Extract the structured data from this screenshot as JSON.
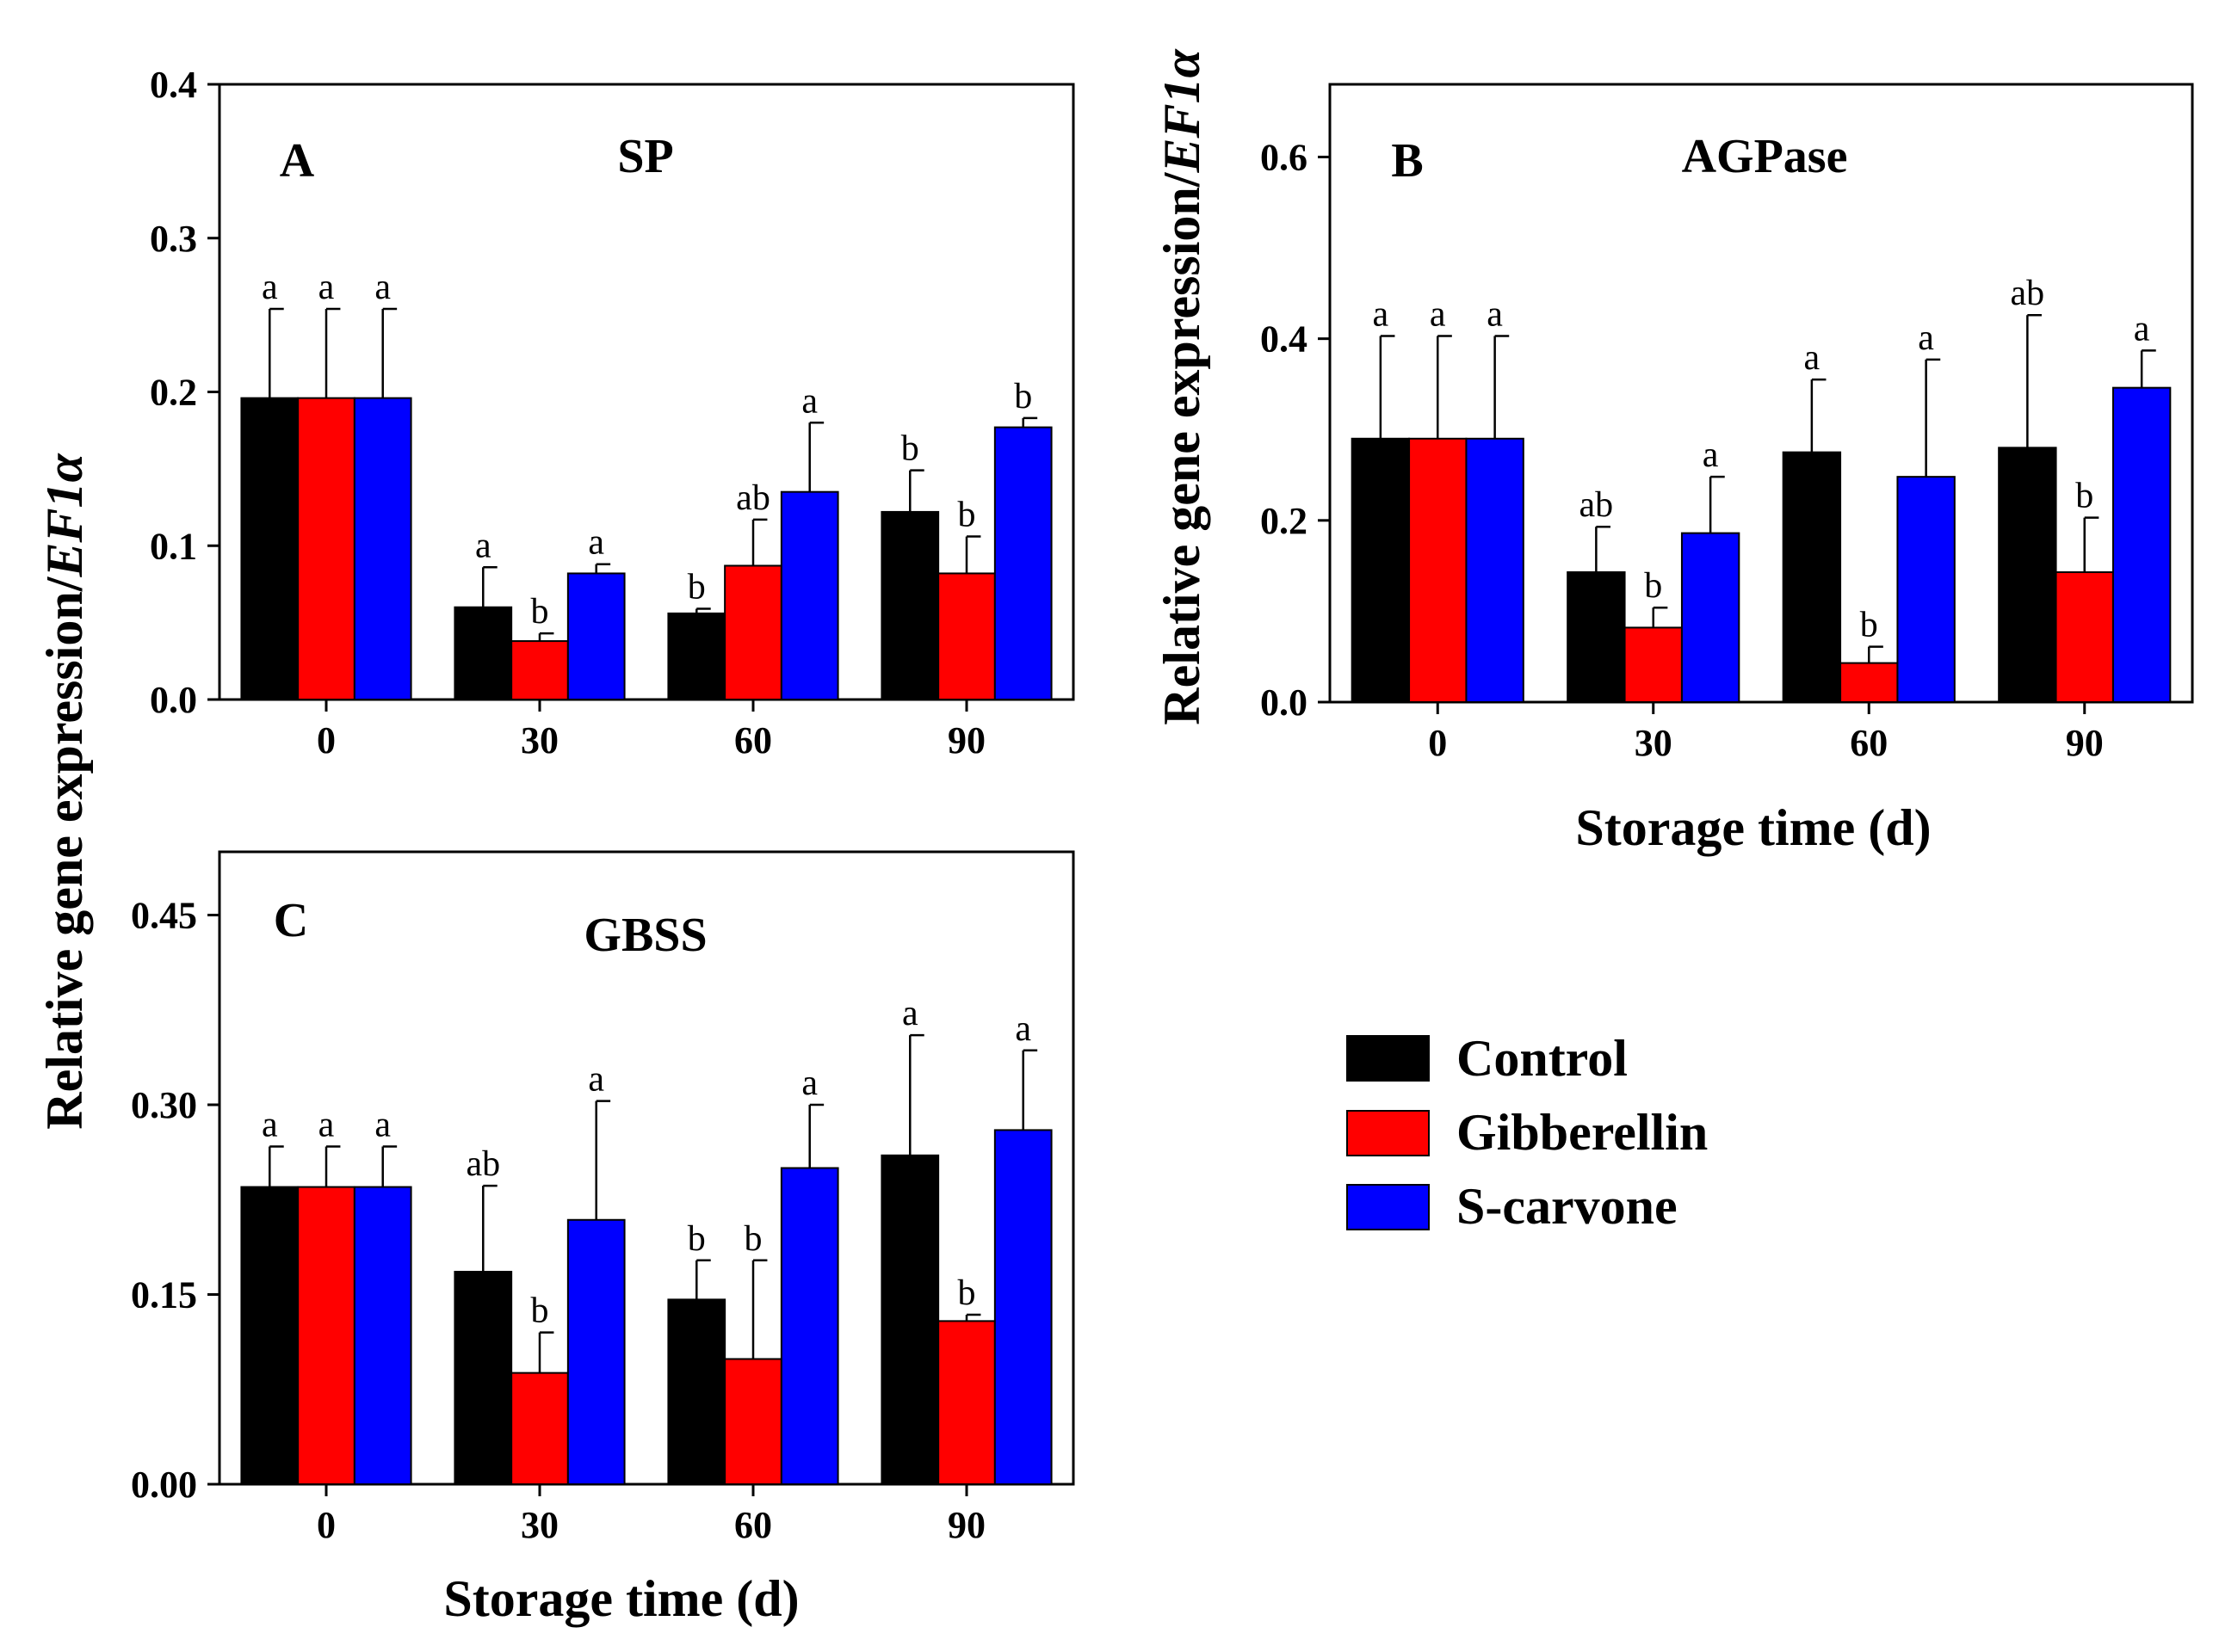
{
  "colors": {
    "control": "#000000",
    "gibberellin": "#ff0000",
    "s_carvone": "#0000ff"
  },
  "axes": {
    "ylabel_prefix": "Relative gene expression/",
    "ylabel_gene": "EF1α",
    "xlabel": "Storage time (d)"
  },
  "legend": [
    "Control",
    "Gibberellin",
    "S-carvone"
  ],
  "chart_data": [
    {
      "type": "bar",
      "panel": "A",
      "title": "SP",
      "categories": [
        "0",
        "30",
        "60",
        "90"
      ],
      "ylim": [
        0,
        0.4
      ],
      "yticks": [
        0.0,
        0.1,
        0.2,
        0.3,
        0.4
      ],
      "ytick_labels": [
        "0.0",
        "0.1",
        "0.2",
        "0.3",
        "0.4"
      ],
      "series": [
        {
          "name": "Control",
          "values": [
            0.196,
            0.06,
            0.056,
            0.122
          ],
          "errors": [
            0.058,
            0.026,
            0.003,
            0.027
          ],
          "labels": [
            "a",
            "a",
            "b",
            "b"
          ]
        },
        {
          "name": "Gibberellin",
          "values": [
            0.196,
            0.038,
            0.087,
            0.082
          ],
          "errors": [
            0.058,
            0.005,
            0.03,
            0.024
          ],
          "labels": [
            "a",
            "b",
            "ab",
            "b"
          ]
        },
        {
          "name": "S-carvone",
          "values": [
            0.196,
            0.082,
            0.135,
            0.177
          ],
          "errors": [
            0.058,
            0.006,
            0.045,
            0.006
          ],
          "labels": [
            "a",
            "a",
            "a",
            "b"
          ]
        }
      ]
    },
    {
      "type": "bar",
      "panel": "B",
      "title": "AGPase",
      "categories": [
        "0",
        "30",
        "60",
        "90"
      ],
      "ylim": [
        0,
        0.68
      ],
      "yticks": [
        0.0,
        0.2,
        0.4,
        0.6
      ],
      "ytick_labels": [
        "0.0",
        "0.2",
        "0.4",
        "0.6"
      ],
      "series": [
        {
          "name": "Control",
          "values": [
            0.29,
            0.143,
            0.275,
            0.28
          ],
          "errors": [
            0.113,
            0.05,
            0.08,
            0.146
          ],
          "labels": [
            "a",
            "ab",
            "a",
            "ab"
          ]
        },
        {
          "name": "Gibberellin",
          "values": [
            0.29,
            0.082,
            0.043,
            0.143
          ],
          "errors": [
            0.113,
            0.022,
            0.018,
            0.06
          ],
          "labels": [
            "a",
            "b",
            "b",
            "b"
          ]
        },
        {
          "name": "S-carvone",
          "values": [
            0.29,
            0.186,
            0.248,
            0.346
          ],
          "errors": [
            0.113,
            0.062,
            0.129,
            0.041
          ],
          "labels": [
            "a",
            "a",
            "a",
            "a"
          ]
        }
      ]
    },
    {
      "type": "bar",
      "panel": "C",
      "title": "GBSS",
      "categories": [
        "0",
        "30",
        "60",
        "90"
      ],
      "ylim": [
        0,
        0.5
      ],
      "yticks": [
        0.0,
        0.15,
        0.3,
        0.45
      ],
      "ytick_labels": [
        "0.00",
        "0.15",
        "0.30",
        "0.45"
      ],
      "series": [
        {
          "name": "Control",
          "values": [
            0.235,
            0.168,
            0.146,
            0.26
          ],
          "errors": [
            0.032,
            0.068,
            0.031,
            0.095
          ],
          "labels": [
            "a",
            "ab",
            "b",
            "a"
          ]
        },
        {
          "name": "Gibberellin",
          "values": [
            0.235,
            0.088,
            0.099,
            0.129
          ],
          "errors": [
            0.032,
            0.032,
            0.078,
            0.005
          ],
          "labels": [
            "a",
            "b",
            "b",
            "b"
          ]
        },
        {
          "name": "S-carvone",
          "values": [
            0.235,
            0.209,
            0.25,
            0.28
          ],
          "errors": [
            0.032,
            0.094,
            0.05,
            0.063
          ],
          "labels": [
            "a",
            "a",
            "a",
            "a"
          ]
        }
      ]
    }
  ]
}
